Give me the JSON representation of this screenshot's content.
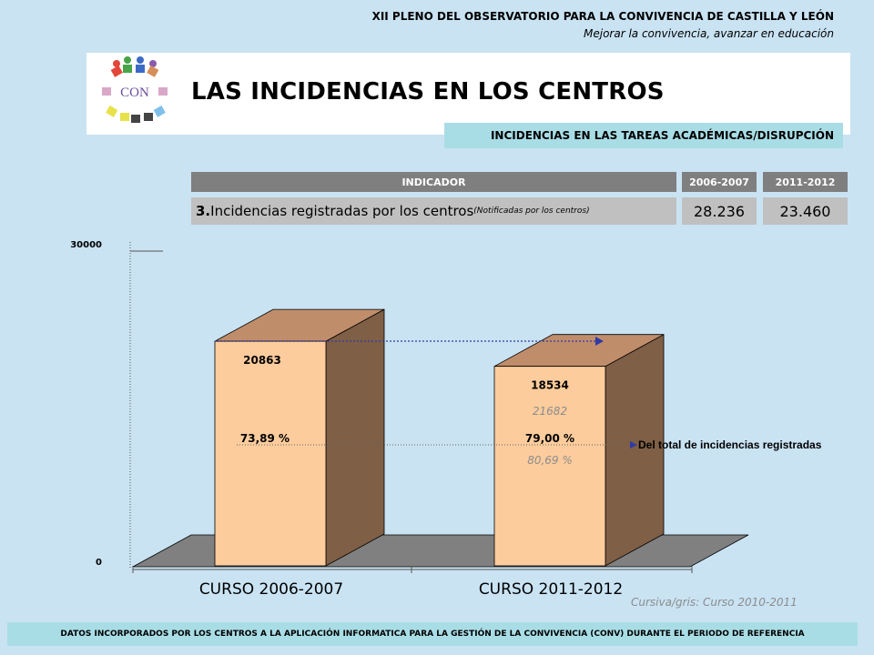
{
  "header": {
    "line1": "XII PLENO DEL OBSERVATORIO PARA LA CONVIVENCIA DE CASTILLA Y LEÓN",
    "line2": "Mejorar la convivencia, avanzar en educación"
  },
  "logo": {
    "text": "CON"
  },
  "title": "LAS INCIDENCIAS EN LOS CENTROS",
  "subtitle": "INCIDENCIAS EN LAS TAREAS ACADÉMICAS/DISRUPCIÓN",
  "table": {
    "headers": [
      "INDICADOR",
      "2006-2007",
      "2011-2012"
    ],
    "row": {
      "number": "3.",
      "label": " Incidencias registradas por los centros",
      "note": " (Notificadas  por los centros)",
      "values": [
        "28.236",
        "23.460"
      ]
    }
  },
  "chart_data": {
    "type": "bar",
    "categories": [
      "CURSO 2006-2007",
      "CURSO 2011-2012"
    ],
    "values": [
      20863,
      18534
    ],
    "value_labels": [
      "20863",
      "18534"
    ],
    "percent_labels": [
      "73,89 %",
      "79,00 %"
    ],
    "previous_year_value_label": "21682",
    "previous_year_percent_label": "80,69 %",
    "y_ticks": [
      "0",
      "30000"
    ],
    "ylim": [
      0,
      30000
    ],
    "annotation": "Del total de incidencias registradas",
    "colors": {
      "front": "#fccc9c",
      "side": "#7f5f45",
      "top": "#c08d6b",
      "floor": "#808080",
      "arrow": "#2e3aa6"
    }
  },
  "note": "Cursiva/gris: Curso 2010-2011",
  "footer": "DATOS INCORPORADOS POR LOS CENTROS  A LA APLICACIÓN INFORMATICA PARA LA GESTIÓN  DE LA CONVIVENCIA (CONV) DURANTE  EL PERIODO DE REFERENCIA"
}
